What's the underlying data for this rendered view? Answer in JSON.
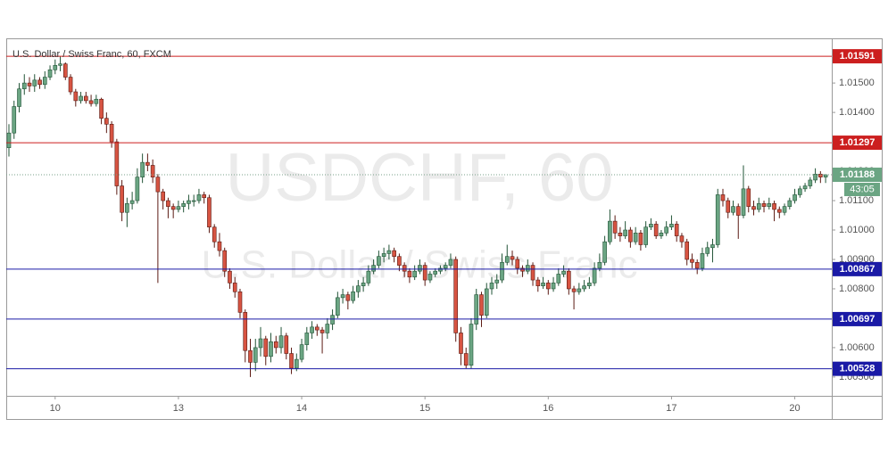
{
  "chart_data": {
    "type": "candlestick",
    "title": "U.S. Dollar / Swiss Franc, 60, FXCM",
    "watermark": "USDCHF, 60",
    "watermark_subtitle": "U.S. Dollar / Swiss Franc",
    "up_color": "#6ba583",
    "down_color": "#d75442",
    "xlim": [
      -0.52,
      160.2
    ],
    "xticks": [
      {
        "value": 9,
        "label": "10"
      },
      {
        "value": 33,
        "label": "13"
      },
      {
        "value": 57,
        "label": "14"
      },
      {
        "value": 81,
        "label": "15"
      },
      {
        "value": 105,
        "label": "16"
      },
      {
        "value": 129,
        "label": "17"
      },
      {
        "value": 153,
        "label": "20"
      }
    ],
    "ylim": [
      1.00436,
      1.01652
    ],
    "yticks": [
      {
        "value": 1.005,
        "label": "1.00500"
      },
      {
        "value": 1.006,
        "label": "1.00600"
      },
      {
        "value": 1.007,
        "label": "1.00700"
      },
      {
        "value": 1.008,
        "label": "1.00800"
      },
      {
        "value": 1.009,
        "label": "1.00900"
      },
      {
        "value": 1.01,
        "label": "1.01000"
      },
      {
        "value": 1.011,
        "label": "1.01100"
      },
      {
        "value": 1.012,
        "label": "1.01200"
      },
      {
        "value": 1.013,
        "label": "1.01300"
      },
      {
        "value": 1.014,
        "label": "1.01400"
      },
      {
        "value": 1.015,
        "label": "1.01500"
      }
    ],
    "hlines": [
      {
        "value": 1.01591,
        "color": "#cc1f1f"
      },
      {
        "value": 1.01297,
        "color": "#cc1f1f"
      },
      {
        "value": 1.00867,
        "color": "#1a1aa6"
      },
      {
        "value": 1.00697,
        "color": "#1a1aa6"
      },
      {
        "value": 1.00528,
        "color": "#1a1aa6"
      }
    ],
    "last_price": {
      "value": 1.01188,
      "countdown": "43:05",
      "color": "#6ba583"
    },
    "candles": [
      [
        1.0128,
        1.0136,
        1.0125,
        1.0133
      ],
      [
        1.0133,
        1.0144,
        1.0131,
        1.0142
      ],
      [
        1.0142,
        1.015,
        1.014,
        1.0148
      ],
      [
        1.0148,
        1.0153,
        1.0146,
        1.015
      ],
      [
        1.015,
        1.0152,
        1.0147,
        1.0149
      ],
      [
        1.0149,
        1.0153,
        1.0147,
        1.0151
      ],
      [
        1.0151,
        1.0152,
        1.0148,
        1.01495
      ],
      [
        1.01495,
        1.0154,
        1.0148,
        1.0152
      ],
      [
        1.0152,
        1.0156,
        1.0151,
        1.01545
      ],
      [
        1.01545,
        1.0158,
        1.0153,
        1.0156
      ],
      [
        1.0156,
        1.0159,
        1.0154,
        1.01565
      ],
      [
        1.01565,
        1.0157,
        1.0151,
        1.0152
      ],
      [
        1.0152,
        1.0153,
        1.0146,
        1.0147
      ],
      [
        1.0147,
        1.0148,
        1.0142,
        1.0144
      ],
      [
        1.0144,
        1.0147,
        1.0143,
        1.01455
      ],
      [
        1.01455,
        1.0147,
        1.0143,
        1.0144
      ],
      [
        1.0144,
        1.0146,
        1.0142,
        1.0143
      ],
      [
        1.0143,
        1.0146,
        1.0142,
        1.01445
      ],
      [
        1.01445,
        1.0145,
        1.0136,
        1.0138
      ],
      [
        1.0138,
        1.014,
        1.0133,
        1.0136
      ],
      [
        1.0136,
        1.0137,
        1.0128,
        1.013
      ],
      [
        1.013,
        1.0131,
        1.0112,
        1.0115
      ],
      [
        1.0115,
        1.0117,
        1.0103,
        1.0106
      ],
      [
        1.0106,
        1.0111,
        1.0101,
        1.0109
      ],
      [
        1.0109,
        1.0113,
        1.0107,
        1.011
      ],
      [
        1.011,
        1.0121,
        1.0109,
        1.0118
      ],
      [
        1.0118,
        1.0126,
        1.0116,
        1.0123
      ],
      [
        1.0123,
        1.0126,
        1.012,
        1.0122
      ],
      [
        1.0122,
        1.0124,
        1.0116,
        1.0118
      ],
      [
        1.0118,
        1.0119,
        1.0082,
        1.0113
      ],
      [
        1.0113,
        1.0114,
        1.0107,
        1.011
      ],
      [
        1.011,
        1.0111,
        1.0104,
        1.0108
      ],
      [
        1.0108,
        1.0109,
        1.0104,
        1.0107
      ],
      [
        1.0107,
        1.011,
        1.0106,
        1.0108
      ],
      [
        1.0108,
        1.011,
        1.0106,
        1.0109
      ],
      [
        1.0109,
        1.0112,
        1.0107,
        1.011
      ],
      [
        1.011,
        1.0112,
        1.0108,
        1.011
      ],
      [
        1.011,
        1.0114,
        1.0109,
        1.0112
      ],
      [
        1.0112,
        1.0113,
        1.0109,
        1.0111
      ],
      [
        1.0111,
        1.0112,
        1.0099,
        1.0101
      ],
      [
        1.0101,
        1.0102,
        1.0094,
        1.0096
      ],
      [
        1.0096,
        1.0099,
        1.0091,
        1.0093
      ],
      [
        1.0093,
        1.0094,
        1.0084,
        1.0086
      ],
      [
        1.0086,
        1.0087,
        1.008,
        1.0082
      ],
      [
        1.0082,
        1.0084,
        1.0077,
        1.0079
      ],
      [
        1.0079,
        1.008,
        1.007,
        1.0072
      ],
      [
        1.0072,
        1.0073,
        1.0055,
        1.0059
      ],
      [
        1.0059,
        1.0063,
        1.005,
        1.0055
      ],
      [
        1.0055,
        1.0063,
        1.0052,
        1.006
      ],
      [
        1.006,
        1.0067,
        1.0057,
        1.0063
      ],
      [
        1.0063,
        1.0064,
        1.0054,
        1.0057
      ],
      [
        1.0057,
        1.0065,
        1.0055,
        1.0062
      ],
      [
        1.0062,
        1.0064,
        1.0058,
        1.006
      ],
      [
        1.006,
        1.0067,
        1.0058,
        1.0064
      ],
      [
        1.0064,
        1.0065,
        1.0056,
        1.0058
      ],
      [
        1.0058,
        1.006,
        1.0051,
        1.0053
      ],
      [
        1.0053,
        1.0058,
        1.0052,
        1.0056
      ],
      [
        1.0056,
        1.0063,
        1.0055,
        1.0061
      ],
      [
        1.0061,
        1.0067,
        1.0059,
        1.0065
      ],
      [
        1.0065,
        1.0069,
        1.0063,
        1.0067
      ],
      [
        1.0067,
        1.0068,
        1.0064,
        1.0066
      ],
      [
        1.0066,
        1.0067,
        1.0058,
        1.0065
      ],
      [
        1.0065,
        1.007,
        1.0063,
        1.0068
      ],
      [
        1.0068,
        1.0073,
        1.0066,
        1.0071
      ],
      [
        1.0071,
        1.0079,
        1.007,
        1.0077
      ],
      [
        1.0077,
        1.008,
        1.0075,
        1.0078
      ],
      [
        1.0078,
        1.0079,
        1.0073,
        1.0076
      ],
      [
        1.0076,
        1.0081,
        1.0075,
        1.0079
      ],
      [
        1.0079,
        1.0083,
        1.0077,
        1.0081
      ],
      [
        1.0081,
        1.0084,
        1.0079,
        1.0082
      ],
      [
        1.0082,
        1.0088,
        1.0081,
        1.0086
      ],
      [
        1.0086,
        1.009,
        1.0085,
        1.0088
      ],
      [
        1.0088,
        1.0093,
        1.0087,
        1.0091
      ],
      [
        1.0091,
        1.0094,
        1.0089,
        1.0092
      ],
      [
        1.0092,
        1.0095,
        1.009,
        1.0093
      ],
      [
        1.0093,
        1.0094,
        1.0089,
        1.0091
      ],
      [
        1.0091,
        1.0092,
        1.0086,
        1.0088
      ],
      [
        1.0088,
        1.0089,
        1.0084,
        1.0086
      ],
      [
        1.0086,
        1.0087,
        1.0082,
        1.0084
      ],
      [
        1.0084,
        1.0088,
        1.0083,
        1.0086
      ],
      [
        1.0086,
        1.009,
        1.0085,
        1.0088
      ],
      [
        1.0088,
        1.0089,
        1.0081,
        1.0083
      ],
      [
        1.0083,
        1.0086,
        1.0082,
        1.0085
      ],
      [
        1.0085,
        1.0087,
        1.0084,
        1.0086
      ],
      [
        1.0086,
        1.0088,
        1.0085,
        1.0087
      ],
      [
        1.0087,
        1.0089,
        1.0086,
        1.0088
      ],
      [
        1.0088,
        1.0092,
        1.0087,
        1.009
      ],
      [
        1.009,
        1.0091,
        1.0062,
        1.0065
      ],
      [
        1.0065,
        1.0067,
        1.0054,
        1.0058
      ],
      [
        1.0058,
        1.006,
        1.0053,
        1.0054
      ],
      [
        1.0054,
        1.007,
        1.0053,
        1.0068
      ],
      [
        1.0068,
        1.008,
        1.0066,
        1.0078
      ],
      [
        1.0078,
        1.0079,
        1.0067,
        1.0071
      ],
      [
        1.0071,
        1.0082,
        1.007,
        1.008
      ],
      [
        1.008,
        1.0084,
        1.0078,
        1.0082
      ],
      [
        1.0082,
        1.0085,
        1.008,
        1.0083
      ],
      [
        1.0083,
        1.0092,
        1.0082,
        1.0089
      ],
      [
        1.0089,
        1.0095,
        1.0088,
        1.0091
      ],
      [
        1.0091,
        1.0093,
        1.0088,
        1.009
      ],
      [
        1.009,
        1.0091,
        1.0085,
        1.0087
      ],
      [
        1.0087,
        1.0088,
        1.0084,
        1.0086
      ],
      [
        1.0086,
        1.009,
        1.0085,
        1.0088
      ],
      [
        1.0088,
        1.0089,
        1.0081,
        1.0083
      ],
      [
        1.0083,
        1.0084,
        1.0079,
        1.0081
      ],
      [
        1.0081,
        1.0084,
        1.008,
        1.0082
      ],
      [
        1.0082,
        1.0083,
        1.0078,
        1.008
      ],
      [
        1.008,
        1.0084,
        1.0079,
        1.0082
      ],
      [
        1.0082,
        1.0087,
        1.0081,
        1.0085
      ],
      [
        1.0085,
        1.0088,
        1.0084,
        1.0086
      ],
      [
        1.0086,
        1.0087,
        1.0078,
        1.008
      ],
      [
        1.008,
        1.0081,
        1.0073,
        1.0079
      ],
      [
        1.0079,
        1.0082,
        1.0078,
        1.008
      ],
      [
        1.008,
        1.0083,
        1.0079,
        1.0081
      ],
      [
        1.0081,
        1.0084,
        1.008,
        1.0082
      ],
      [
        1.0082,
        1.0089,
        1.0081,
        1.0087
      ],
      [
        1.0087,
        1.0092,
        1.0086,
        1.0089
      ],
      [
        1.0089,
        1.0098,
        1.0088,
        1.0096
      ],
      [
        1.0096,
        1.0107,
        1.0095,
        1.0103
      ],
      [
        1.0103,
        1.0105,
        1.0097,
        1.0099
      ],
      [
        1.0099,
        1.0101,
        1.0096,
        1.0098
      ],
      [
        1.0098,
        1.0103,
        1.0097,
        1.01
      ],
      [
        1.01,
        1.0101,
        1.0094,
        1.0096
      ],
      [
        1.0096,
        1.0101,
        1.0095,
        1.0099
      ],
      [
        1.0099,
        1.01,
        1.0093,
        1.0095
      ],
      [
        1.0095,
        1.0103,
        1.0094,
        1.0101
      ],
      [
        1.0101,
        1.0104,
        1.01,
        1.0102
      ],
      [
        1.0102,
        1.0103,
        1.0097,
        1.0098
      ],
      [
        1.0098,
        1.01,
        1.0097,
        1.0099
      ],
      [
        1.0099,
        1.0103,
        1.0098,
        1.0101
      ],
      [
        1.0101,
        1.0105,
        1.01,
        1.0102
      ],
      [
        1.0102,
        1.0103,
        1.0096,
        1.0098
      ],
      [
        1.0098,
        1.0099,
        1.0094,
        1.0096
      ],
      [
        1.0096,
        1.0097,
        1.0088,
        1.009
      ],
      [
        1.009,
        1.0092,
        1.0087,
        1.0089
      ],
      [
        1.0089,
        1.009,
        1.0085,
        1.0087
      ],
      [
        1.0087,
        1.0094,
        1.0086,
        1.0092
      ],
      [
        1.0092,
        1.0096,
        1.0091,
        1.0094
      ],
      [
        1.0094,
        1.0097,
        1.0089,
        1.0095
      ],
      [
        1.0095,
        1.0114,
        1.0094,
        1.0112
      ],
      [
        1.0112,
        1.0114,
        1.0108,
        1.011
      ],
      [
        1.011,
        1.0111,
        1.0104,
        1.0106
      ],
      [
        1.0106,
        1.011,
        1.0105,
        1.0108
      ],
      [
        1.0108,
        1.0109,
        1.0097,
        1.0105
      ],
      [
        1.0105,
        1.0122,
        1.0104,
        1.0114
      ],
      [
        1.0114,
        1.0115,
        1.0106,
        1.0108
      ],
      [
        1.0108,
        1.011,
        1.0105,
        1.0107
      ],
      [
        1.0107,
        1.0111,
        1.0106,
        1.0109
      ],
      [
        1.0109,
        1.011,
        1.0106,
        1.0108
      ],
      [
        1.0108,
        1.0111,
        1.0107,
        1.0109
      ],
      [
        1.0109,
        1.011,
        1.0103,
        1.0107
      ],
      [
        1.0107,
        1.0108,
        1.0104,
        1.0106
      ],
      [
        1.0106,
        1.0109,
        1.0105,
        1.0108
      ],
      [
        1.0108,
        1.0111,
        1.0107,
        1.011
      ],
      [
        1.011,
        1.0114,
        1.0109,
        1.0112
      ],
      [
        1.0112,
        1.0115,
        1.0111,
        1.0114
      ],
      [
        1.0114,
        1.0116,
        1.0113,
        1.0115
      ],
      [
        1.0115,
        1.0118,
        1.0114,
        1.0117
      ],
      [
        1.0117,
        1.0121,
        1.0116,
        1.0119
      ],
      [
        1.0119,
        1.012,
        1.0116,
        1.0118
      ],
      [
        1.0118,
        1.0119,
        1.0116,
        1.01188
      ]
    ]
  }
}
